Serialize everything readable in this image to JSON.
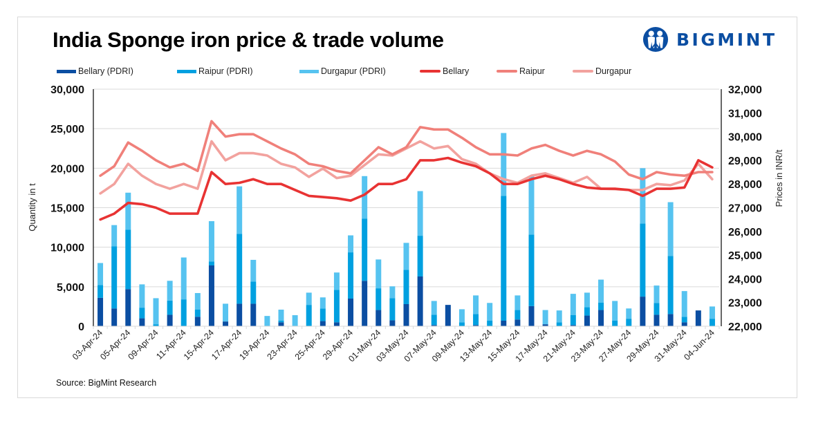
{
  "header": {
    "title": "India Sponge iron price & trade volume",
    "logo_text": "BIGMINT",
    "logo_icon": "bigmint-people-icon"
  },
  "legend": [
    {
      "label": "Bellary (PDRI)",
      "kind": "bar",
      "color": "#0B4EA2"
    },
    {
      "label": "Raipur (PDRI)",
      "kind": "bar",
      "color": "#00A0E0"
    },
    {
      "label": "Durgapur (PDRI)",
      "kind": "bar",
      "color": "#56C3F0"
    },
    {
      "label": "Bellary",
      "kind": "line",
      "color": "#E83333"
    },
    {
      "label": "Raipur",
      "kind": "line",
      "color": "#F0807A"
    },
    {
      "label": "Durgapur",
      "kind": "line",
      "color": "#F2A29E"
    }
  ],
  "footer": {
    "source": "Source: BigMint Research"
  },
  "chart_data": {
    "type": "bar+line",
    "title": "India Sponge iron price & trade volume",
    "xlabel": "",
    "ylabel": "Quantity in t",
    "y2label": "Prices in INR/t",
    "ylim": [
      0,
      30000
    ],
    "y_ticks": [
      "0",
      "5,000",
      "10,000",
      "15,000",
      "20,000",
      "25,000",
      "30,000"
    ],
    "y2lim": [
      22000,
      32000
    ],
    "y2_ticks": [
      "22,000",
      "23,000",
      "24,000",
      "25,000",
      "26,000",
      "27,000",
      "28,000",
      "29,000",
      "30,000",
      "31,000",
      "32,000"
    ],
    "grid": true,
    "legend_position": "top",
    "category_count": 45,
    "x_tick_labels": [
      "03-Apr-24",
      "05-Apr-24",
      "09-Apr-24",
      "11-Apr-24",
      "15-Apr-24",
      "17-Apr-24",
      "19-Apr-24",
      "23-Apr-24",
      "25-Apr-24",
      "29-Apr-24",
      "01-May-24",
      "03-May-24",
      "07-May-24",
      "09-May-24",
      "13-May-24",
      "15-May-24",
      "17-May-24",
      "21-May-24",
      "23-May-24",
      "27-May-24",
      "29-May-24",
      "31-May-24",
      "04-Jun-24"
    ],
    "x_tick_every": 2,
    "bar_series": [
      {
        "name": "Bellary (PDRI)",
        "color": "#0B4EA2",
        "stack": "volume",
        "values": [
          3600,
          2250,
          4700,
          1000,
          0,
          1450,
          0,
          1200,
          7700,
          600,
          2850,
          2850,
          0,
          500,
          0,
          0,
          650,
          500,
          3500,
          5750,
          2050,
          750,
          2800,
          6300,
          150,
          2700,
          0,
          150,
          0,
          700,
          850,
          2550,
          250,
          0,
          150,
          1350,
          2050,
          0,
          0,
          3750,
          1450,
          1550,
          500,
          2000,
          0
        ]
      },
      {
        "name": "Raipur (PDRI)",
        "color": "#00A0E0",
        "stack": "volume",
        "values": [
          1600,
          7850,
          7500,
          1350,
          250,
          1800,
          3400,
          900,
          500,
          0,
          8850,
          2800,
          0,
          200,
          0,
          2700,
          1600,
          4100,
          5850,
          7850,
          2750,
          2800,
          4350,
          5150,
          1300,
          0,
          500,
          1400,
          700,
          15800,
          1200,
          9050,
          0,
          500,
          1250,
          1050,
          950,
          700,
          950,
          9250,
          1500,
          7350,
          700,
          0,
          950
        ]
      },
      {
        "name": "Durgapur (PDRI)",
        "color": "#56C3F0",
        "stack": "volume",
        "values": [
          2800,
          2700,
          4700,
          2950,
          3300,
          2500,
          5300,
          2100,
          5100,
          2250,
          6000,
          2750,
          1300,
          1400,
          1400,
          1550,
          1400,
          2200,
          2150,
          5400,
          3650,
          1500,
          3400,
          5650,
          1750,
          0,
          1650,
          2350,
          2250,
          7950,
          1850,
          7350,
          1800,
          1500,
          2700,
          1850,
          2900,
          2500,
          1300,
          7000,
          2200,
          6800,
          3250,
          0,
          1550
        ]
      }
    ],
    "line_series": [
      {
        "name": "Bellary",
        "color": "#E83333",
        "axis": "y2",
        "values": [
          26500,
          26750,
          27200,
          27150,
          27000,
          26750,
          26750,
          26750,
          28500,
          28000,
          28050,
          28200,
          28000,
          28000,
          27750,
          27500,
          27450,
          27400,
          27300,
          27550,
          28000,
          28000,
          28200,
          29000,
          29000,
          29100,
          28900,
          28750,
          28450,
          28000,
          28000,
          28200,
          28350,
          28200,
          28000,
          27850,
          27800,
          27800,
          27750,
          27500,
          27800,
          27800,
          27850,
          29000,
          28700
        ]
      },
      {
        "name": "Raipur",
        "color": "#F0807A",
        "axis": "y2",
        "values": [
          28350,
          28750,
          29750,
          29400,
          29000,
          28700,
          28850,
          28550,
          30650,
          30000,
          30100,
          30100,
          29800,
          29500,
          29250,
          28850,
          28750,
          28550,
          28450,
          29000,
          29550,
          29250,
          29550,
          30400,
          30300,
          30300,
          29950,
          29550,
          29250,
          29250,
          29200,
          29500,
          29650,
          29400,
          29200,
          29400,
          29250,
          28950,
          28400,
          28200,
          28500,
          28400,
          28350,
          28500,
          28500
        ]
      },
      {
        "name": "Durgapur",
        "color": "#F2A29E",
        "axis": "y2",
        "values": [
          27600,
          28000,
          28850,
          28350,
          28000,
          27800,
          28000,
          27800,
          29800,
          29000,
          29300,
          29300,
          29200,
          28850,
          28700,
          28300,
          28650,
          28250,
          28350,
          28800,
          29250,
          29200,
          29500,
          29800,
          29500,
          29600,
          29050,
          28850,
          28450,
          28200,
          28050,
          28350,
          28450,
          28250,
          28050,
          28300,
          27800,
          27780,
          27750,
          27750,
          28000,
          27950,
          28150,
          28850,
          28200
        ]
      }
    ]
  }
}
